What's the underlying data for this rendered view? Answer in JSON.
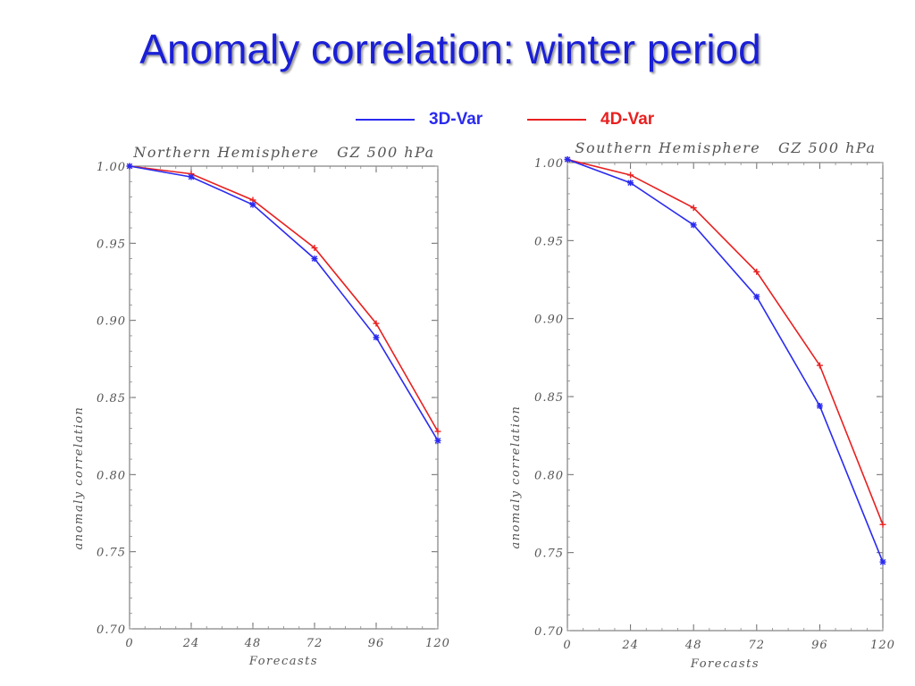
{
  "slide": {
    "title": "Anomaly correlation: winter period"
  },
  "legend": [
    {
      "label": "3D-Var",
      "color": "#2a2af0"
    },
    {
      "label": "4D-Var",
      "color": "#e82020"
    }
  ],
  "chart_data": [
    {
      "type": "line",
      "title": "Northern Hemisphere   GZ 500 hPa",
      "xlabel": "Forecasts",
      "ylabel": "anomaly correlation",
      "x": [
        0,
        24,
        48,
        72,
        96,
        120
      ],
      "xlim": [
        0,
        120
      ],
      "ylim": [
        0.7,
        1.0
      ],
      "y_ticks": [
        "1.00",
        "0.95",
        "0.90",
        "0.85",
        "0.80",
        "0.75",
        "0.70"
      ],
      "x_ticks": [
        "0",
        "24",
        "48",
        "72",
        "96",
        "120"
      ],
      "series": [
        {
          "name": "3D-Var",
          "color": "#2a2af0",
          "marker": "asterisk",
          "values": [
            1.0,
            0.993,
            0.975,
            0.94,
            0.889,
            0.822
          ]
        },
        {
          "name": "4D-Var",
          "color": "#e82020",
          "marker": "plus",
          "values": [
            1.0,
            0.995,
            0.978,
            0.947,
            0.898,
            0.828
          ]
        }
      ]
    },
    {
      "type": "line",
      "title": "Southern Hemisphere   GZ 500 hPa",
      "xlabel": "Forecasts",
      "ylabel": "anomaly correlation",
      "x": [
        0,
        24,
        48,
        72,
        96,
        120
      ],
      "xlim": [
        0,
        120
      ],
      "ylim": [
        0.7,
        1.0
      ],
      "y_ticks": [
        "1.00",
        "0.95",
        "0.90",
        "0.85",
        "0.80",
        "0.75",
        "0.70"
      ],
      "x_ticks": [
        "0",
        "24",
        "48",
        "72",
        "96",
        "120"
      ],
      "series": [
        {
          "name": "3D-Var",
          "color": "#2a2af0",
          "marker": "asterisk",
          "values": [
            1.002,
            0.987,
            0.96,
            0.914,
            0.844,
            0.744
          ]
        },
        {
          "name": "4D-Var",
          "color": "#e82020",
          "marker": "plus",
          "values": [
            1.002,
            0.992,
            0.971,
            0.93,
            0.87,
            0.768
          ]
        }
      ]
    }
  ]
}
